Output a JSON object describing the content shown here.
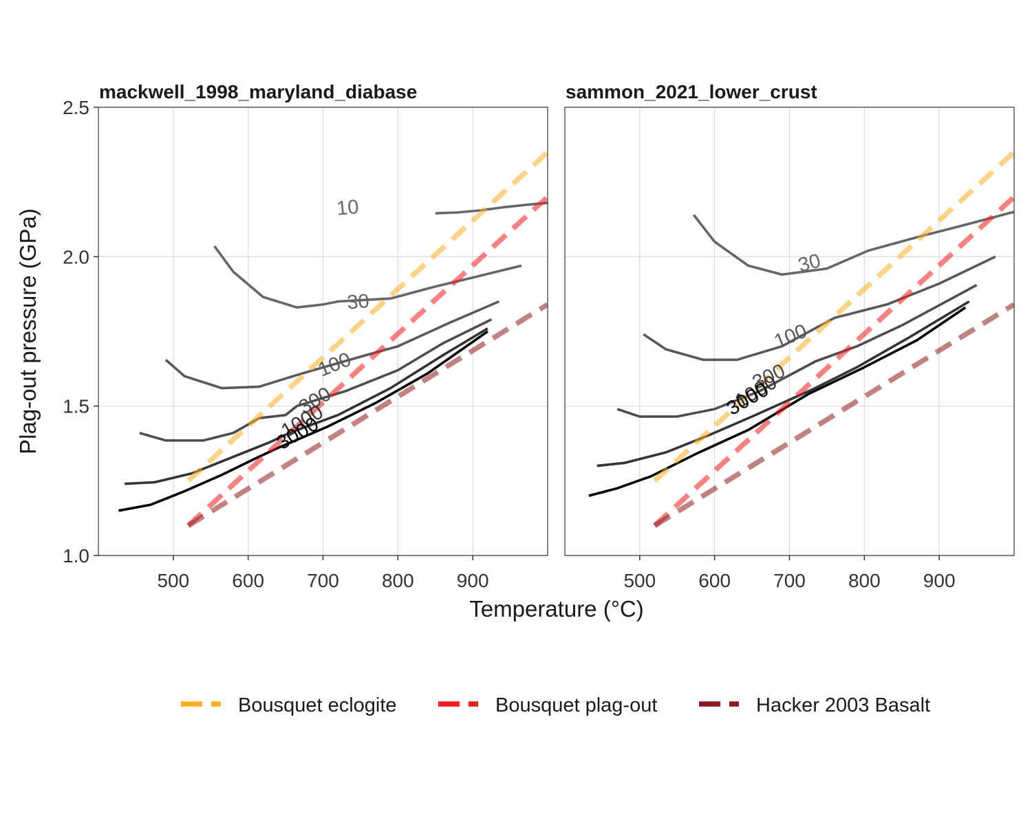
{
  "chart_data": {
    "type": "line",
    "xlabel": "Temperature (°C)",
    "ylabel": "Plag-out pressure (GPa)",
    "xlim": [
      400,
      1000
    ],
    "ylim": [
      1.0,
      2.5
    ],
    "x_ticks": [
      "500",
      "600",
      "700",
      "800",
      "900"
    ],
    "y_ticks": [
      "1.0",
      "1.5",
      "2.0",
      "2.5"
    ],
    "grid": true,
    "legend_position": "bottom",
    "legend": [
      {
        "label": "Bousquet eclogite",
        "color": "#FDAE23"
      },
      {
        "label": "Bousquet plag-out",
        "color": "#F21C1C"
      },
      {
        "label": "Hacker 2003 Basalt",
        "color": "#8E1B1B"
      }
    ],
    "reference_lines": [
      {
        "name": "Bousquet eclogite",
        "color": "#FDAE23",
        "x": [
          520,
          1000
        ],
        "y": [
          1.25,
          2.35
        ]
      },
      {
        "name": "Bousquet plag-out",
        "color": "#F21C1C",
        "x": [
          520,
          1000
        ],
        "y": [
          1.1,
          2.2
        ]
      },
      {
        "name": "Hacker 2003 Basalt",
        "color": "#8E1B1B",
        "x": [
          520,
          1000
        ],
        "y": [
          1.1,
          1.84
        ]
      }
    ],
    "panels": [
      {
        "title": "mackwell_1998_maryland_diabase",
        "contours": [
          {
            "level": "10",
            "color": "#666666",
            "x": [
              850,
              880,
              910,
              940,
              970,
              1000
            ],
            "y": [
              2.145,
              2.148,
              2.155,
              2.165,
              2.173,
              2.18
            ]
          },
          {
            "level": "30",
            "color": "#666666",
            "x": [
              555,
              580,
              620,
              665,
              700,
              720,
              790,
              850,
              900,
              965
            ],
            "y": [
              2.035,
              1.95,
              1.865,
              1.83,
              1.84,
              1.85,
              1.86,
              1.9,
              1.93,
              1.97
            ]
          },
          {
            "level": "100",
            "color": "#595959",
            "x": [
              490,
              515,
              565,
              615,
              660,
              680,
              750,
              800,
              870,
              935
            ],
            "y": [
              1.655,
              1.6,
              1.56,
              1.565,
              1.6,
              1.615,
              1.665,
              1.7,
              1.78,
              1.85
            ]
          },
          {
            "level": "300",
            "color": "#4d4d4d",
            "x": [
              455,
              490,
              540,
              580,
              615,
              650,
              665,
              730,
              800,
              860,
              925
            ],
            "y": [
              1.41,
              1.385,
              1.385,
              1.41,
              1.46,
              1.47,
              1.5,
              1.55,
              1.62,
              1.71,
              1.79
            ]
          },
          {
            "level": "1000",
            "color": "#333333",
            "x": [
              435,
              475,
              525,
              580,
              630,
              655,
              720,
              790,
              860,
              920
            ],
            "y": [
              1.24,
              1.245,
              1.275,
              1.33,
              1.38,
              1.41,
              1.47,
              1.56,
              1.67,
              1.76
            ]
          },
          {
            "level": "3000",
            "color": "#000000",
            "x": [
              427,
              470,
              515,
              565,
              610,
              640,
              705,
              770,
              840,
              920
            ],
            "y": [
              1.15,
              1.17,
              1.215,
              1.27,
              1.325,
              1.36,
              1.43,
              1.51,
              1.61,
              1.75
            ]
          }
        ],
        "contour_labels": [
          {
            "text": "10",
            "x": 733,
            "y": 2.16,
            "angle": -5
          },
          {
            "text": "30",
            "x": 747,
            "y": 1.845,
            "angle": -4
          },
          {
            "text": "100",
            "x": 716,
            "y": 1.635,
            "angle": -22
          },
          {
            "text": "300",
            "x": 690,
            "y": 1.515,
            "angle": -30
          },
          {
            "text": "1000",
            "x": 673,
            "y": 1.445,
            "angle": -30
          },
          {
            "text": "3000",
            "x": 667,
            "y": 1.405,
            "angle": -30
          }
        ]
      },
      {
        "title": "sammon_2021_lower_crust",
        "contours": [
          {
            "level": "30",
            "color": "#666666",
            "x": [
              572,
              600,
              645,
              690,
              750,
              805,
              870,
              940,
              1000
            ],
            "y": [
              2.14,
              2.05,
              1.97,
              1.94,
              1.96,
              2.02,
              2.065,
              2.11,
              2.15
            ]
          },
          {
            "level": "100",
            "color": "#595959",
            "x": [
              505,
              535,
              585,
              630,
              690,
              760,
              830,
              900,
              975
            ],
            "y": [
              1.74,
              1.69,
              1.655,
              1.655,
              1.7,
              1.795,
              1.84,
              1.91,
              2.0
            ]
          },
          {
            "level": "300",
            "color": "#4d4d4d",
            "x": [
              470,
              500,
              550,
              600,
              660,
              735,
              790,
              850,
              950
            ],
            "y": [
              1.49,
              1.465,
              1.465,
              1.49,
              1.55,
              1.65,
              1.7,
              1.77,
              1.905
            ]
          },
          {
            "level": "1000",
            "color": "#333333",
            "x": [
              443,
              480,
              535,
              590,
              650,
              730,
              790,
              860,
              940
            ],
            "y": [
              1.3,
              1.31,
              1.345,
              1.4,
              1.465,
              1.555,
              1.63,
              1.73,
              1.85
            ]
          },
          {
            "level": "3000",
            "color": "#000000",
            "x": [
              432,
              470,
              515,
              575,
              645,
              725,
              800,
              870,
              935
            ],
            "y": [
              1.2,
              1.225,
              1.265,
              1.34,
              1.42,
              1.54,
              1.63,
              1.72,
              1.83
            ]
          }
        ],
        "contour_labels": [
          {
            "text": "30",
            "x": 727,
            "y": 1.975,
            "angle": -15
          },
          {
            "text": "100",
            "x": 702,
            "y": 1.73,
            "angle": -22
          },
          {
            "text": "300",
            "x": 673,
            "y": 1.595,
            "angle": -25
          },
          {
            "text": "1000",
            "x": 656,
            "y": 1.545,
            "angle": -30
          },
          {
            "text": "3000",
            "x": 645,
            "y": 1.52,
            "angle": -30
          }
        ]
      }
    ]
  }
}
